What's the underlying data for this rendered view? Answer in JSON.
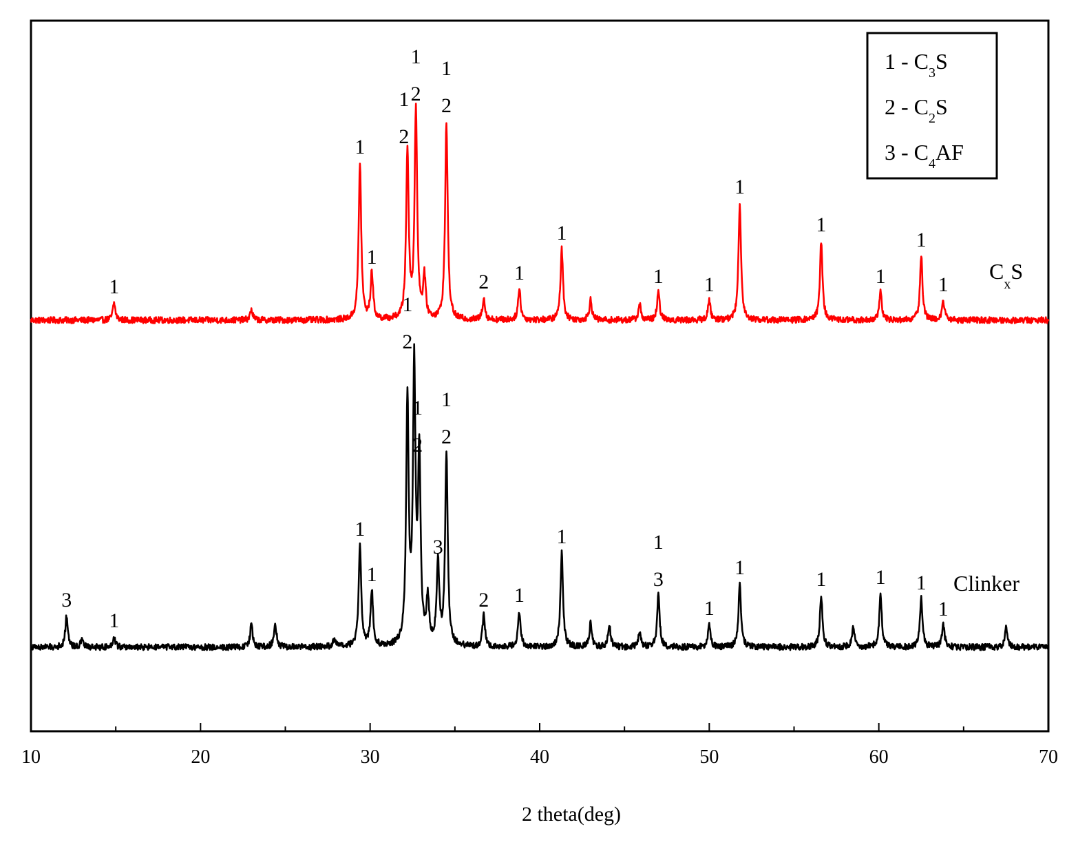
{
  "chart_data": {
    "type": "line",
    "xlabel": "2 theta(deg)",
    "ylabel": "",
    "xlim": [
      10,
      70
    ],
    "x_ticks": [
      "10",
      "20",
      "30",
      "40",
      "50",
      "60",
      "70"
    ],
    "grid": false,
    "legend": {
      "placement": "top-right",
      "entries": [
        {
          "prefix": "1 - C",
          "sub": "3",
          "suffix": "S"
        },
        {
          "prefix": "2 - C",
          "sub": "2",
          "suffix": "S"
        },
        {
          "prefix": "3 - C",
          "sub": "4",
          "suffix": "AF"
        }
      ]
    },
    "series": [
      {
        "name": "C",
        "name_sub": "x",
        "name_suffix": "S",
        "color": "#ff0000",
        "baseline": 0,
        "peaks": [
          {
            "x": 14.9,
            "y": 25
          },
          {
            "x": 23.0,
            "y": 15
          },
          {
            "x": 29.4,
            "y": 228
          },
          {
            "x": 30.1,
            "y": 68
          },
          {
            "x": 32.2,
            "y": 243
          },
          {
            "x": 32.7,
            "y": 305
          },
          {
            "x": 33.2,
            "y": 60
          },
          {
            "x": 34.5,
            "y": 288
          },
          {
            "x": 36.7,
            "y": 32
          },
          {
            "x": 38.8,
            "y": 45
          },
          {
            "x": 41.3,
            "y": 103
          },
          {
            "x": 43.0,
            "y": 30
          },
          {
            "x": 45.9,
            "y": 22
          },
          {
            "x": 47.0,
            "y": 40
          },
          {
            "x": 50.0,
            "y": 28
          },
          {
            "x": 51.8,
            "y": 170
          },
          {
            "x": 56.6,
            "y": 115
          },
          {
            "x": 60.1,
            "y": 40
          },
          {
            "x": 62.5,
            "y": 93
          },
          {
            "x": 63.8,
            "y": 28
          }
        ],
        "peak_labels": [
          {
            "x": 14.9,
            "y": 25,
            "lines": [
              "1"
            ]
          },
          {
            "x": 29.4,
            "y": 228,
            "lines": [
              "1"
            ]
          },
          {
            "x": 30.1,
            "y": 68,
            "lines": [
              "1"
            ]
          },
          {
            "x": 32.0,
            "y": 243,
            "lines": [
              "1",
              "2"
            ]
          },
          {
            "x": 32.7,
            "y": 305,
            "lines": [
              "1",
              "2"
            ]
          },
          {
            "x": 34.5,
            "y": 288,
            "lines": [
              "1",
              "2"
            ]
          },
          {
            "x": 36.7,
            "y": 32,
            "lines": [
              "2"
            ]
          },
          {
            "x": 38.8,
            "y": 45,
            "lines": [
              "1"
            ]
          },
          {
            "x": 41.3,
            "y": 103,
            "lines": [
              "1"
            ]
          },
          {
            "x": 47.0,
            "y": 40,
            "lines": [
              "1"
            ]
          },
          {
            "x": 50.0,
            "y": 28,
            "lines": [
              "1"
            ]
          },
          {
            "x": 51.8,
            "y": 170,
            "lines": [
              "1"
            ]
          },
          {
            "x": 56.6,
            "y": 115,
            "lines": [
              "1"
            ]
          },
          {
            "x": 60.1,
            "y": 40,
            "lines": [
              "1"
            ]
          },
          {
            "x": 62.5,
            "y": 93,
            "lines": [
              "1"
            ]
          },
          {
            "x": 63.8,
            "y": 28,
            "lines": [
              "1"
            ]
          }
        ]
      },
      {
        "name": "Clinker",
        "color": "#000000",
        "baseline": -475,
        "peaks": [
          {
            "x": 12.1,
            "y": 45
          },
          {
            "x": 13.0,
            "y": 10
          },
          {
            "x": 14.9,
            "y": 15
          },
          {
            "x": 23.0,
            "y": 33
          },
          {
            "x": 24.4,
            "y": 35
          },
          {
            "x": 27.9,
            "y": 12
          },
          {
            "x": 29.4,
            "y": 148
          },
          {
            "x": 30.1,
            "y": 82
          },
          {
            "x": 32.2,
            "y": 350
          },
          {
            "x": 32.6,
            "y": 395
          },
          {
            "x": 32.9,
            "y": 270
          },
          {
            "x": 33.4,
            "y": 65
          },
          {
            "x": 34.0,
            "y": 122
          },
          {
            "x": 34.5,
            "y": 282
          },
          {
            "x": 36.7,
            "y": 45
          },
          {
            "x": 38.8,
            "y": 52
          },
          {
            "x": 41.3,
            "y": 137
          },
          {
            "x": 43.0,
            "y": 35
          },
          {
            "x": 44.1,
            "y": 33
          },
          {
            "x": 45.9,
            "y": 22
          },
          {
            "x": 47.0,
            "y": 75
          },
          {
            "x": 50.0,
            "y": 33
          },
          {
            "x": 51.8,
            "y": 92
          },
          {
            "x": 56.6,
            "y": 75
          },
          {
            "x": 58.5,
            "y": 30
          },
          {
            "x": 60.1,
            "y": 78
          },
          {
            "x": 62.5,
            "y": 70
          },
          {
            "x": 63.8,
            "y": 32
          },
          {
            "x": 67.5,
            "y": 28
          }
        ],
        "peak_labels": [
          {
            "x": 12.1,
            "y": 45,
            "lines": [
              "3"
            ]
          },
          {
            "x": 14.9,
            "y": 15,
            "lines": [
              "1"
            ]
          },
          {
            "x": 29.4,
            "y": 148,
            "lines": [
              "1"
            ]
          },
          {
            "x": 30.1,
            "y": 82,
            "lines": [
              "1"
            ]
          },
          {
            "x": 32.2,
            "y": 420,
            "lines": [
              "1",
              "2"
            ]
          },
          {
            "x": 32.8,
            "y": 270,
            "lines": [
              "1",
              "2"
            ]
          },
          {
            "x": 34.0,
            "y": 122,
            "lines": [
              "3"
            ]
          },
          {
            "x": 34.5,
            "y": 282,
            "lines": [
              "1",
              "2"
            ]
          },
          {
            "x": 36.7,
            "y": 45,
            "lines": [
              "2"
            ]
          },
          {
            "x": 38.8,
            "y": 52,
            "lines": [
              "1"
            ]
          },
          {
            "x": 41.3,
            "y": 137,
            "lines": [
              "1"
            ]
          },
          {
            "x": 47.0,
            "y": 75,
            "lines": [
              "1",
              "3"
            ]
          },
          {
            "x": 50.0,
            "y": 33,
            "lines": [
              "1"
            ]
          },
          {
            "x": 51.8,
            "y": 92,
            "lines": [
              "1"
            ]
          },
          {
            "x": 56.6,
            "y": 75,
            "lines": [
              "1"
            ]
          },
          {
            "x": 60.1,
            "y": 78,
            "lines": [
              "1"
            ]
          },
          {
            "x": 62.5,
            "y": 70,
            "lines": [
              "1"
            ]
          },
          {
            "x": 63.8,
            "y": 32,
            "lines": [
              "1"
            ]
          }
        ]
      }
    ]
  }
}
